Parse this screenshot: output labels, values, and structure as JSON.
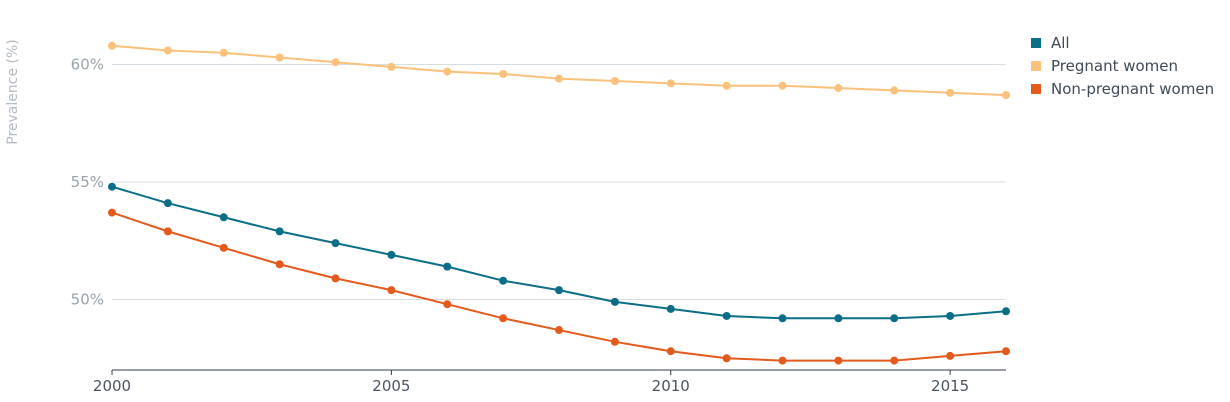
{
  "chart_data": {
    "type": "line",
    "title": "",
    "xlabel": "",
    "ylabel": "Prevalence (%)",
    "x": [
      2000,
      2001,
      2002,
      2003,
      2004,
      2005,
      2006,
      2007,
      2008,
      2009,
      2010,
      2011,
      2012,
      2013,
      2014,
      2015,
      2016
    ],
    "xlim": [
      2000,
      2016
    ],
    "ylim": [
      47,
      61.3
    ],
    "x_ticks": [
      {
        "value": 2000,
        "label": "2000"
      },
      {
        "value": 2005,
        "label": "2005"
      },
      {
        "value": 2010,
        "label": "2010"
      },
      {
        "value": 2015,
        "label": "2015"
      }
    ],
    "y_ticks": [
      {
        "value": 50,
        "label": "50%"
      },
      {
        "value": 55,
        "label": "55%"
      },
      {
        "value": 60,
        "label": "60%"
      }
    ],
    "grid": true,
    "legend_position": "top-right",
    "series": [
      {
        "name": "All",
        "color": "#0b6e87",
        "values": [
          54.8,
          54.1,
          53.5,
          52.9,
          52.4,
          51.9,
          51.4,
          50.8,
          50.4,
          49.9,
          49.6,
          49.3,
          49.2,
          49.2,
          49.2,
          49.3,
          49.5
        ]
      },
      {
        "name": "Pregnant women",
        "color": "#fbc07a",
        "values": [
          60.8,
          60.6,
          60.5,
          60.3,
          60.1,
          59.9,
          59.7,
          59.6,
          59.4,
          59.3,
          59.2,
          59.1,
          59.1,
          59.0,
          58.9,
          58.8,
          58.7
        ]
      },
      {
        "name": "Non-pregnant women",
        "color": "#e35a1c",
        "values": [
          53.7,
          52.9,
          52.2,
          51.5,
          50.9,
          50.4,
          49.8,
          49.2,
          48.7,
          48.2,
          47.8,
          47.5,
          47.4,
          47.4,
          47.4,
          47.6,
          47.8
        ]
      }
    ]
  }
}
